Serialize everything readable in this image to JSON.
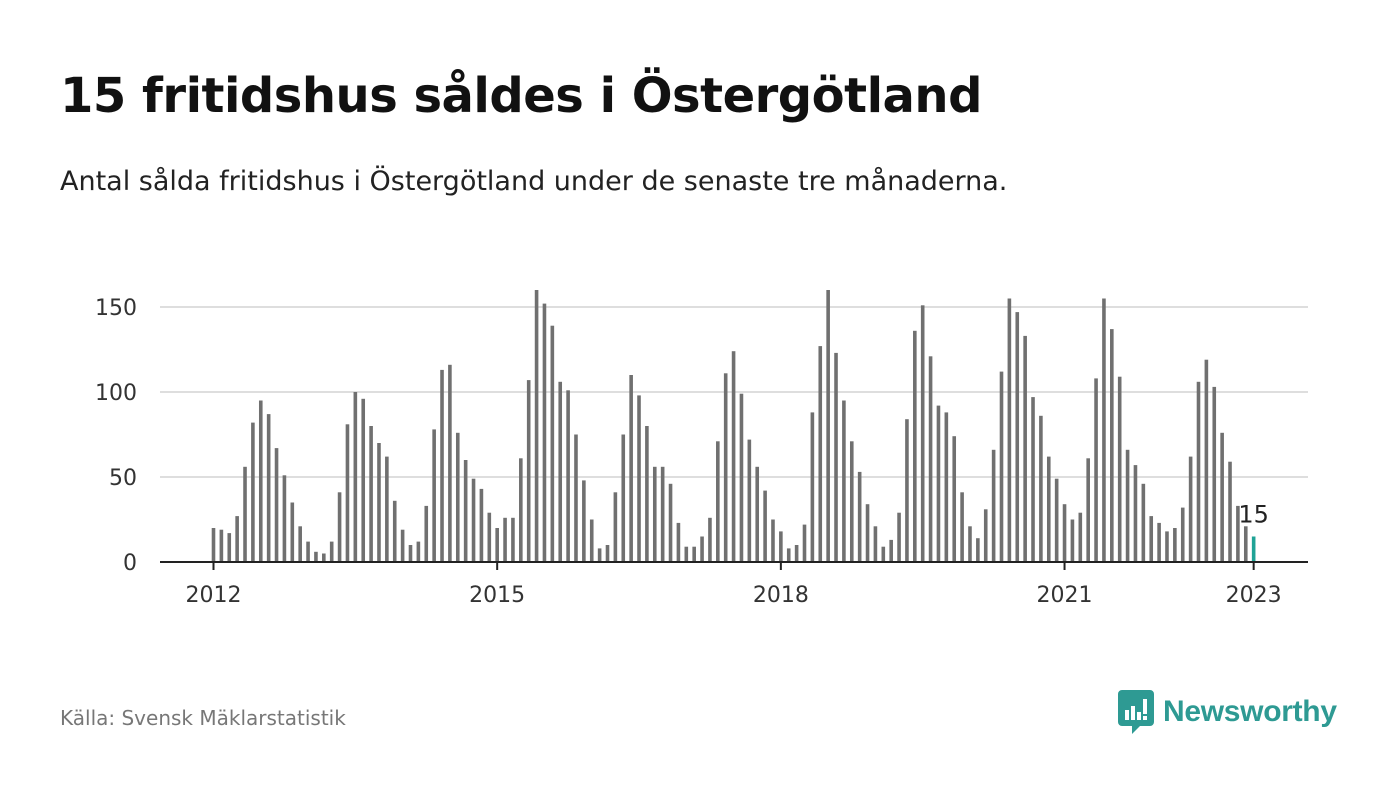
{
  "title": "15 fritidshus såldes i Östergötland",
  "subtitle": "Antal sålda fritidshus i Östergötland under de senaste tre månaderna.",
  "source": "Källa: Svensk Mäklarstatistik",
  "brand": {
    "name": "Newsworthy",
    "icon": "newsworthy-logo-icon",
    "color": "#2e9a93"
  },
  "chart_data": {
    "type": "bar",
    "x_start": "2012-01",
    "x_ticks": [
      "2012",
      "2015",
      "2018",
      "2021",
      "2023"
    ],
    "y_ticks": [
      0,
      50,
      100,
      150
    ],
    "ylim": [
      0,
      160
    ],
    "grid": true,
    "colors": {
      "bars": "#707070",
      "highlight": "#1fa396",
      "grid": "#dedede",
      "axis": "#222222"
    },
    "highlight_label": "15",
    "values": [
      20,
      19,
      17,
      27,
      56,
      82,
      95,
      87,
      67,
      51,
      35,
      21,
      12,
      6,
      5,
      12,
      41,
      81,
      100,
      96,
      80,
      70,
      62,
      36,
      19,
      10,
      12,
      33,
      78,
      113,
      116,
      76,
      60,
      49,
      43,
      29,
      20,
      26,
      26,
      61,
      107,
      160,
      152,
      139,
      106,
      101,
      75,
      48,
      25,
      8,
      10,
      41,
      75,
      110,
      98,
      80,
      56,
      56,
      46,
      23,
      9,
      9,
      15,
      26,
      71,
      111,
      124,
      99,
      72,
      56,
      42,
      25,
      18,
      8,
      10,
      22,
      88,
      127,
      160,
      123,
      95,
      71,
      53,
      34,
      21,
      9,
      13,
      29,
      84,
      136,
      151,
      121,
      92,
      88,
      74,
      41,
      21,
      14,
      31,
      66,
      112,
      155,
      147,
      133,
      97,
      86,
      62,
      49,
      34,
      25,
      29,
      61,
      108,
      155,
      137,
      109,
      66,
      57,
      46,
      27,
      23,
      18,
      20,
      32,
      62,
      106,
      119,
      103,
      76,
      59,
      33,
      21,
      15
    ]
  }
}
